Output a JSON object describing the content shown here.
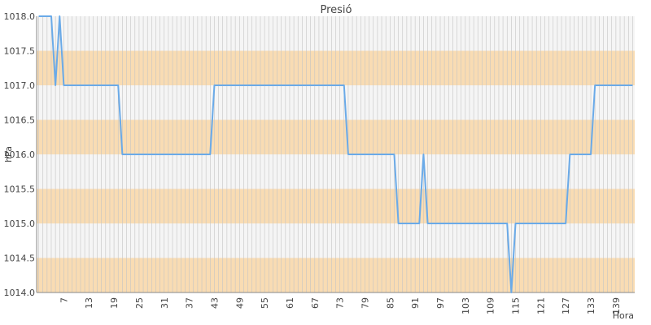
{
  "chart_data": {
    "type": "line",
    "title": "Presió",
    "xlabel": "Hora",
    "ylabel": "hPa",
    "x_ticks": [
      "7",
      "13",
      "19",
      "25",
      "31",
      "37",
      "43",
      "49",
      "55",
      "61",
      "67",
      "73",
      "79",
      "85",
      "91",
      "97",
      "103",
      "109",
      "115",
      "121",
      "127",
      "133",
      "139"
    ],
    "y_ticks": [
      "1014.0",
      "1014.5",
      "1015.0",
      "1015.5",
      "1016.0",
      "1016.5",
      "1017.0",
      "1017.5",
      "1018.0"
    ],
    "x_range": [
      1,
      143
    ],
    "ylim": [
      1014.0,
      1018.0
    ],
    "grid": true,
    "band_colors": [
      "#f9dcb3",
      "#f5f5f5"
    ],
    "line_color": "#6aaae8",
    "x": [
      1,
      2,
      3,
      4,
      5,
      6,
      7,
      8,
      9,
      10,
      11,
      12,
      13,
      14,
      15,
      16,
      17,
      18,
      19,
      20,
      21,
      22,
      23,
      24,
      25,
      26,
      27,
      28,
      29,
      30,
      31,
      32,
      33,
      34,
      35,
      36,
      37,
      38,
      39,
      40,
      41,
      42,
      43,
      44,
      45,
      46,
      47,
      48,
      49,
      50,
      51,
      52,
      53,
      54,
      55,
      56,
      57,
      58,
      59,
      60,
      61,
      62,
      63,
      64,
      65,
      66,
      67,
      68,
      69,
      70,
      71,
      72,
      73,
      74,
      75,
      76,
      77,
      78,
      79,
      80,
      81,
      82,
      83,
      84,
      85,
      86,
      87,
      88,
      89,
      90,
      91,
      92,
      93,
      94,
      95,
      96,
      97,
      98,
      99,
      100,
      101,
      102,
      103,
      104,
      105,
      106,
      107,
      108,
      109,
      110,
      111,
      112,
      113,
      114,
      115,
      116,
      117,
      118,
      119,
      120,
      121,
      122,
      123,
      124,
      125,
      126,
      127,
      128,
      129,
      130,
      131,
      132,
      133,
      134,
      135,
      136,
      137,
      138,
      139,
      140,
      141,
      142,
      143
    ],
    "series": [
      {
        "values": [
          1018,
          1018,
          1018,
          1018,
          1017,
          1018,
          1017,
          1017,
          1017,
          1017,
          1017,
          1017,
          1017,
          1017,
          1017,
          1017,
          1017,
          1017,
          1017,
          1017,
          1016,
          1016,
          1016,
          1016,
          1016,
          1016,
          1016,
          1016,
          1016,
          1016,
          1016,
          1016,
          1016,
          1016,
          1016,
          1016,
          1016,
          1016,
          1016,
          1016,
          1016,
          1016,
          1017,
          1017,
          1017,
          1017,
          1017,
          1017,
          1017,
          1017,
          1017,
          1017,
          1017,
          1017,
          1017,
          1017,
          1017,
          1017,
          1017,
          1017,
          1017,
          1017,
          1017,
          1017,
          1017,
          1017,
          1017,
          1017,
          1017,
          1017,
          1017,
          1017,
          1017,
          1017,
          1016,
          1016,
          1016,
          1016,
          1016,
          1016,
          1016,
          1016,
          1016,
          1016,
          1016,
          1016,
          1015,
          1015,
          1015,
          1015,
          1015,
          1015,
          1016,
          1015,
          1015,
          1015,
          1015,
          1015,
          1015,
          1015,
          1015,
          1015,
          1015,
          1015,
          1015,
          1015,
          1015,
          1015,
          1015,
          1015,
          1015,
          1015,
          1015,
          1014,
          1015,
          1015,
          1015,
          1015,
          1015,
          1015,
          1015,
          1015,
          1015,
          1015,
          1015,
          1015,
          1015,
          1016,
          1016,
          1016,
          1016,
          1016,
          1016,
          1017,
          1017,
          1017,
          1017,
          1017,
          1017,
          1017,
          1017,
          1017,
          1017
        ]
      }
    ]
  }
}
